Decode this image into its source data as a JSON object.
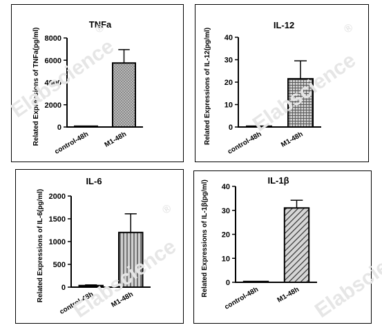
{
  "watermark": "Elabscience",
  "registered_mark": "®",
  "chart_data": [
    {
      "type": "bar",
      "title": "TNFa",
      "ylabel": "Related Expressions of TNFa(pg/ml)",
      "categories": [
        "control-48h",
        "M1-48h"
      ],
      "values": [
        30,
        5750
      ],
      "errors": [
        0,
        1200
      ],
      "ylim": [
        0,
        8000
      ],
      "yticks": [
        0,
        2000,
        4000,
        6000,
        8000
      ],
      "patterns": [
        "solid",
        "dots"
      ]
    },
    {
      "type": "bar",
      "title": "IL-12",
      "ylabel": "Related Expressions of IL-12(pg/ml)",
      "categories": [
        "control-48h",
        "M1-48h"
      ],
      "values": [
        0.1,
        21.5
      ],
      "errors": [
        0,
        8
      ],
      "ylim": [
        0,
        40
      ],
      "yticks": [
        0,
        10,
        20,
        30,
        40
      ],
      "patterns": [
        "solid",
        "grid"
      ]
    },
    {
      "type": "bar",
      "title": "IL-6",
      "ylabel": "Related Expressions of IL-6(pg/ml)",
      "categories": [
        "control-48h",
        "M1-48h"
      ],
      "values": [
        35,
        1200
      ],
      "errors": [
        15,
        410
      ],
      "ylim": [
        0,
        2000
      ],
      "yticks": [
        0,
        500,
        1000,
        1500,
        2000
      ],
      "patterns": [
        "solid",
        "vlines"
      ]
    },
    {
      "type": "bar",
      "title": "IL-1β",
      "ylabel": "Related Expressions of IL-1β(pg/ml)",
      "categories": [
        "control-48h",
        "M1-48h"
      ],
      "values": [
        0.1,
        31
      ],
      "errors": [
        0,
        3.2
      ],
      "ylim": [
        0,
        40
      ],
      "yticks": [
        0,
        10,
        20,
        30,
        40
      ],
      "patterns": [
        "solid",
        "diag"
      ]
    }
  ]
}
